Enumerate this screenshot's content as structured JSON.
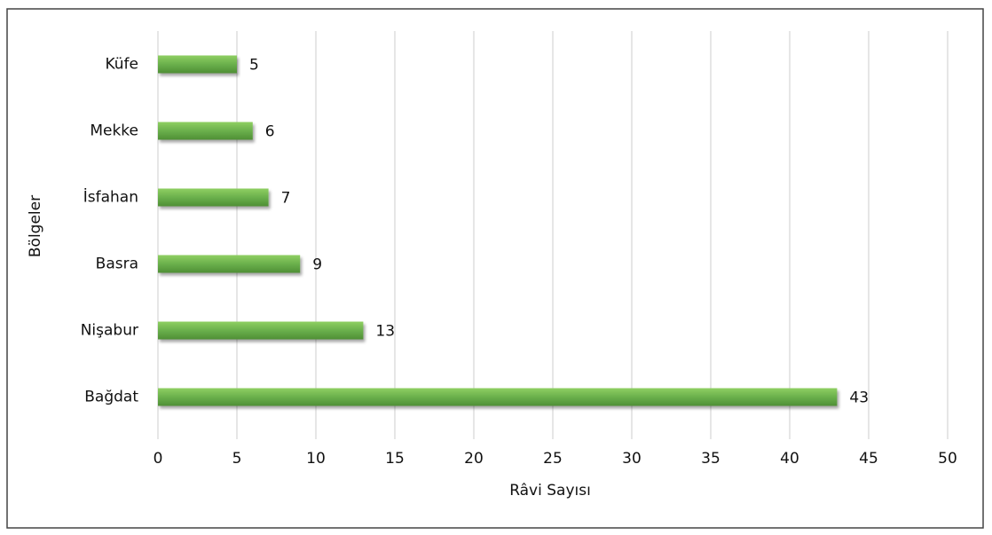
{
  "chart_data": {
    "type": "bar",
    "orientation": "horizontal",
    "categories": [
      "Küfe",
      "Mekke",
      "İsfahan",
      "Basra",
      "Nişabur",
      "Bağdat"
    ],
    "values": [
      5,
      6,
      7,
      9,
      13,
      43
    ],
    "color": "#6ab04c",
    "xlabel": "Râvi Sayısı",
    "ylabel": "Bölgeler",
    "xlim": [
      0,
      50
    ],
    "xticks": [
      0,
      5,
      10,
      15,
      20,
      25,
      30,
      35,
      40,
      45,
      50
    ],
    "grid": true
  }
}
